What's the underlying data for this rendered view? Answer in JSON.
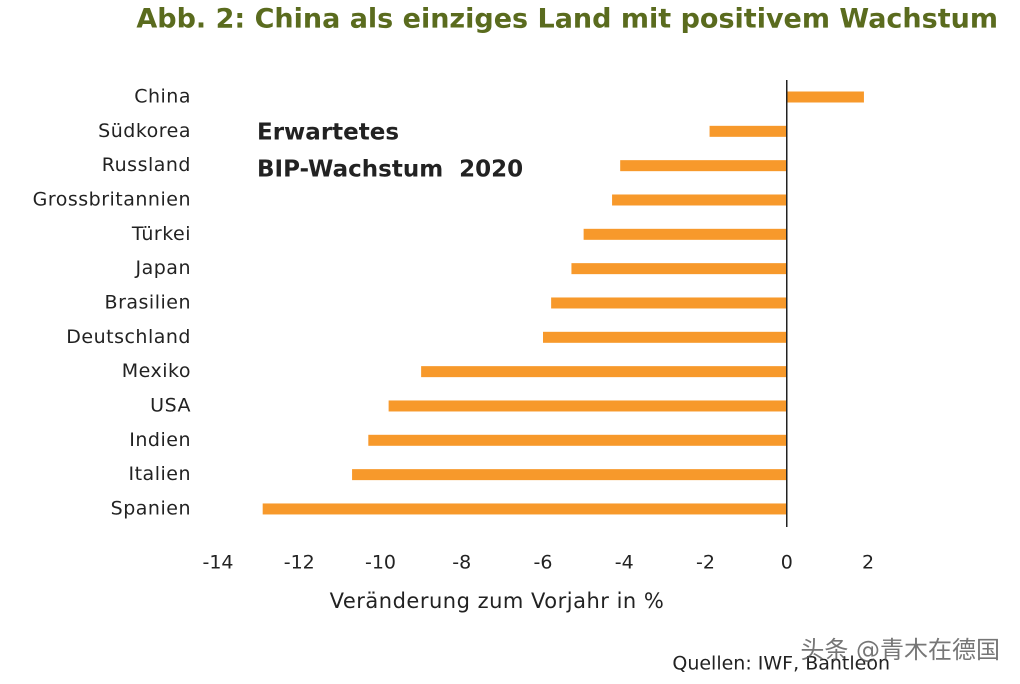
{
  "chart_data": {
    "type": "barh",
    "title": "Abb. 2: China als einziges Land mit positivem Wachstum",
    "annotation": [
      "Erwartetes",
      "BIP-Wachstum  2020"
    ],
    "x_label": "Veränderung zum Vorjahr in %",
    "source": "Quellen: IWF, Bantleon",
    "watermark": "头条 @青木在德国",
    "categories": [
      "China",
      "Südkorea",
      "Russland",
      "Grossbritannien",
      "Türkei",
      "Japan",
      "Brasilien",
      "Deutschland",
      "Mexiko",
      "USA",
      "Indien",
      "Italien",
      "Spanien"
    ],
    "values": [
      1.9,
      -1.9,
      -4.1,
      -4.3,
      -5.0,
      -5.3,
      -5.8,
      -6.0,
      -9.0,
      -9.8,
      -10.3,
      -10.7,
      -12.9
    ],
    "color": "#f7992b",
    "xlim": [
      -14,
      2
    ],
    "xticks": [
      -14,
      -12,
      -10,
      -8,
      -6,
      -4,
      -2,
      0,
      2
    ],
    "grid": false
  }
}
